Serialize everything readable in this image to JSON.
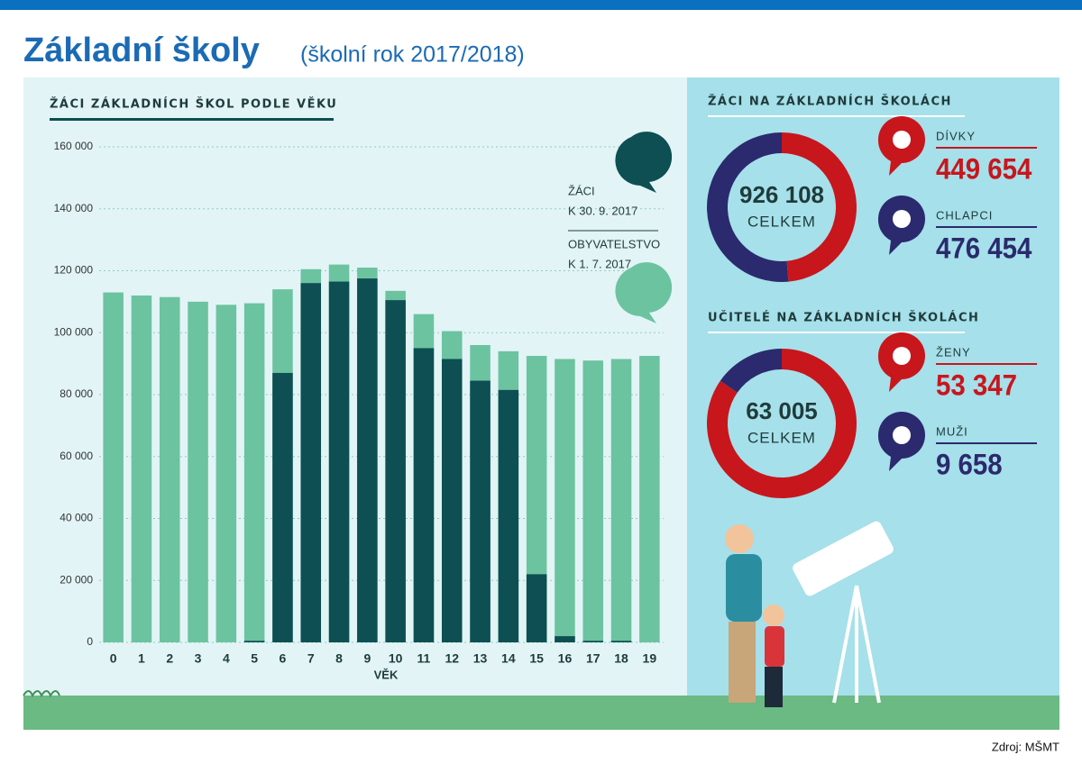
{
  "header": {
    "title": "Základní školy",
    "subtitle": "(školní rok 2017/2018)"
  },
  "chart_data": [
    {
      "type": "bar",
      "mode": "overlay",
      "title": "ŽÁCI ZÁKLADNÍCH ŠKOL PODLE VĚKU",
      "xlabel": "VĚK",
      "categories": [
        "0",
        "1",
        "2",
        "3",
        "4",
        "5",
        "6",
        "7",
        "8",
        "9",
        "10",
        "11",
        "12",
        "13",
        "14",
        "15",
        "16",
        "17",
        "18",
        "19"
      ],
      "series": [
        {
          "name": "ŽÁCI",
          "note": "K 30. 9. 2017",
          "color": "#0d4f52",
          "values": [
            0,
            0,
            0,
            0,
            0,
            500,
            87000,
            116000,
            116500,
            117500,
            110500,
            95000,
            91500,
            84500,
            81500,
            22000,
            2000,
            500,
            500,
            0
          ]
        },
        {
          "name": "OBYVATELSTVO",
          "note": "K 1. 7. 2017",
          "color": "#6cc3a0",
          "values": [
            113000,
            112000,
            111500,
            110000,
            109000,
            109500,
            114000,
            120500,
            122000,
            121000,
            113500,
            106000,
            100500,
            96000,
            94000,
            92500,
            91500,
            91000,
            91500,
            92500
          ]
        }
      ],
      "ylim": [
        0,
        160000
      ],
      "yticks": [
        0,
        {
          "value": 20000,
          "label": "20 000"
        },
        {
          "value": 40000,
          "label": "40 000"
        },
        {
          "value": 60000,
          "label": "60 000"
        },
        {
          "value": 80000,
          "label": "80 000"
        },
        {
          "value": 100000,
          "label": "100 000"
        },
        {
          "value": 120000,
          "label": "120 000"
        },
        {
          "value": 140000,
          "label": "140 000"
        },
        {
          "value": 160000,
          "label": "160 000"
        }
      ],
      "grid": true
    },
    {
      "type": "pie",
      "donut": true,
      "title": "ŽÁCI NA ZÁKLADNÍCH ŠKOLÁCH",
      "categories": [
        "DÍVKY",
        "CHLAPCI"
      ],
      "values": [
        449654,
        476454
      ],
      "value_labels": [
        "449 654",
        "476 454"
      ],
      "colors": [
        "#c8161d",
        "#2b2a6e"
      ],
      "total": 926108,
      "total_label": "926 108",
      "center_caption": "CELKEM"
    },
    {
      "type": "pie",
      "donut": true,
      "title": "UČITELÉ NA ZÁKLADNÍCH ŠKOLÁCH",
      "categories": [
        "ŽENY",
        "MUŽI"
      ],
      "values": [
        53347,
        9658
      ],
      "value_labels": [
        "53 347",
        "9 658"
      ],
      "colors": [
        "#c8161d",
        "#2b2a6e"
      ],
      "total": 63005,
      "total_label": "63 005",
      "center_caption": "CELKEM"
    }
  ],
  "source": "Zdroj: MŠMT"
}
